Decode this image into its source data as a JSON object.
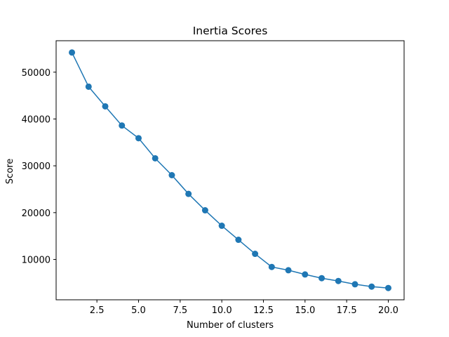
{
  "chart_data": {
    "type": "line",
    "title": "Inertia Scores",
    "xlabel": "Number of clusters",
    "ylabel": "Score",
    "x": [
      1,
      2,
      3,
      4,
      5,
      6,
      7,
      8,
      9,
      10,
      11,
      12,
      13,
      14,
      15,
      16,
      17,
      18,
      19,
      20
    ],
    "series": [
      {
        "values": [
          54200,
          46900,
          42700,
          38600,
          35900,
          31600,
          28000,
          24000,
          20500,
          17200,
          14200,
          11200,
          8400,
          7700,
          6800,
          6000,
          5400,
          4700,
          4200,
          3900
        ]
      }
    ],
    "xlim": [
      0.05,
      20.95
    ],
    "ylim": [
      1385,
      56715
    ],
    "xticks": [
      2.5,
      5.0,
      7.5,
      10.0,
      12.5,
      15.0,
      17.5,
      20.0
    ],
    "xtick_labels": [
      "2.5",
      "5.0",
      "7.5",
      "10.0",
      "12.5",
      "15.0",
      "17.5",
      "20.0"
    ],
    "yticks": [
      10000,
      20000,
      30000,
      40000,
      50000
    ],
    "ytick_labels": [
      "10000",
      "20000",
      "30000",
      "40000",
      "50000"
    ],
    "grid": false,
    "markers": true,
    "colors": {
      "series": "#1f77b4",
      "axes": "#000000",
      "background": "#ffffff"
    }
  }
}
